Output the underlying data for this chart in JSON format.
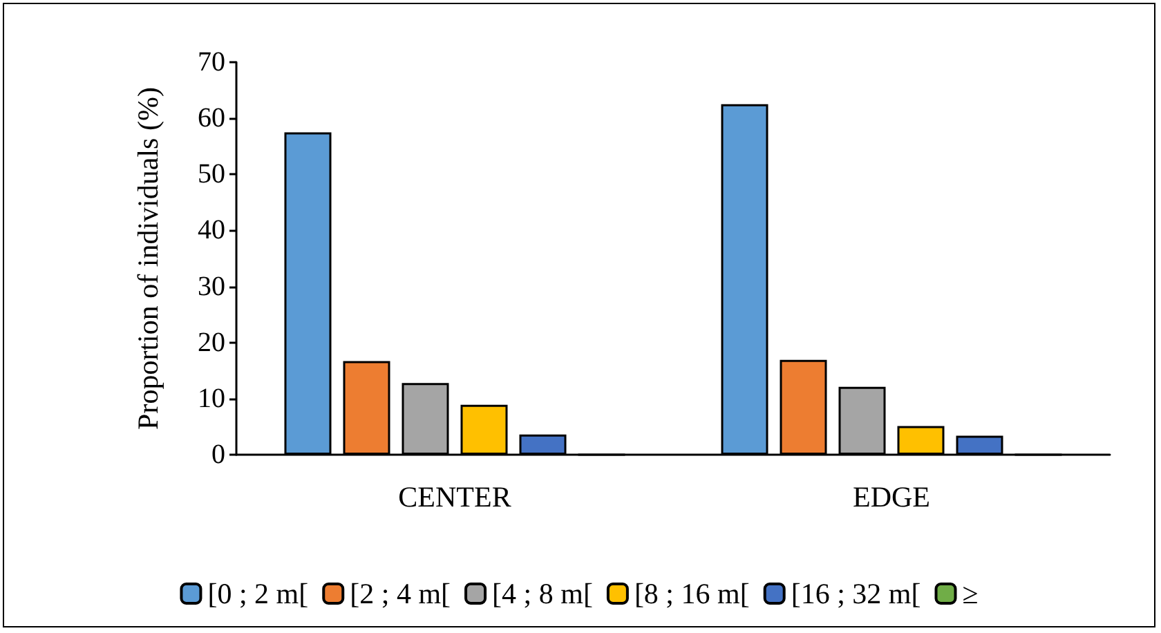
{
  "chart_data": {
    "type": "bar",
    "ylabel": "Proportion of individuals (%)",
    "categories": [
      "CENTER",
      "EDGE"
    ],
    "series": [
      {
        "name": "[0 ; 2 m[",
        "color": "#5b9bd5",
        "values": [
          57.5,
          62.5
        ]
      },
      {
        "name": "[2 ; 4 m[",
        "color": "#ed7d31",
        "values": [
          16.7,
          16.9
        ]
      },
      {
        "name": "[4 ; 8 m[",
        "color": "#a5a5a5",
        "values": [
          12.8,
          12.1
        ]
      },
      {
        "name": "[8 ; 16 m[",
        "color": "#ffc000",
        "values": [
          8.9,
          5.1
        ]
      },
      {
        "name": "[16 ; 32 m[",
        "color": "#4472c4",
        "values": [
          3.6,
          3.4
        ]
      },
      {
        "name": "≥",
        "color": "#70ad47",
        "values": [
          0,
          0
        ]
      }
    ],
    "ylim": [
      0,
      70
    ],
    "yticks": [
      0,
      10,
      20,
      30,
      40,
      50,
      60,
      70
    ],
    "grid": false,
    "legend": "bottom"
  }
}
